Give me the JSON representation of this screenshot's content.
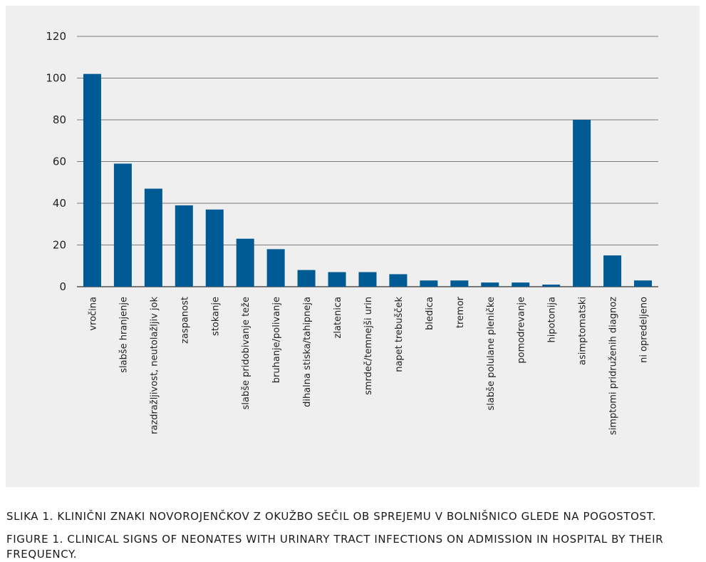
{
  "chart_data": {
    "type": "bar",
    "categories": [
      "vročina",
      "slabše hranjenje",
      "razdražljivost, neutolažljiv jok",
      "zaspanost",
      "stokanje",
      "slabše pridobivanje teže",
      "bruhanje/polivanje",
      "dihalna stiska/tahipneja",
      "zlatenica",
      "smrdeč/temnejši urin",
      "napet trebušček",
      "bledica",
      "tremor",
      "slabše polulane pleničke",
      "pomodrevanje",
      "hipotonija",
      "asimptomatski",
      "simptomi pridruženih diagnoz",
      "ni opredeljeno"
    ],
    "values": [
      102,
      59,
      47,
      39,
      37,
      23,
      18,
      8,
      7,
      7,
      6,
      3,
      3,
      2,
      2,
      1,
      80,
      15,
      3
    ],
    "yticks": [
      0,
      20,
      40,
      60,
      80,
      100,
      120
    ],
    "ylim": [
      0,
      120
    ],
    "grid": true,
    "bar_color": "#005a94",
    "title": "",
    "xlabel": "",
    "ylabel": ""
  },
  "captions": {
    "sl": "SLIKA 1. KLINIČNI ZNAKI NOVOROJENČKOV Z OKUŽBO SEČIL OB SPREJEMU V BOLNIŠNICO GLEDE NA POGOSTOST.",
    "en": "FIGURE 1. CLINICAL SIGNS OF NEONATES WITH URINARY TRACT INFECTIONS ON ADMISSION IN HOSPITAL BY THEIR FREQUENCY."
  }
}
